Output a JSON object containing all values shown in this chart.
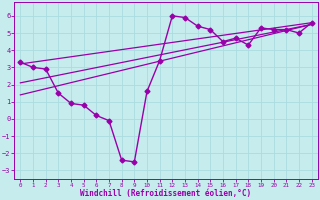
{
  "xlabel": "Windchill (Refroidissement éolien,°C)",
  "xlim": [
    -0.5,
    23.5
  ],
  "ylim": [
    -3.5,
    6.8
  ],
  "xticks": [
    0,
    1,
    2,
    3,
    4,
    5,
    6,
    7,
    8,
    9,
    10,
    11,
    12,
    13,
    14,
    15,
    16,
    17,
    18,
    19,
    20,
    21,
    22,
    23
  ],
  "yticks": [
    -3,
    -2,
    -1,
    0,
    1,
    2,
    3,
    4,
    5,
    6
  ],
  "bg_color": "#c6ecee",
  "grid_color": "#aadce0",
  "line_color": "#9900aa",
  "data_x": [
    0,
    1,
    2,
    3,
    4,
    5,
    6,
    7,
    8,
    9,
    10,
    11,
    12,
    13,
    14,
    15,
    16,
    17,
    18,
    19,
    20,
    21,
    22,
    23
  ],
  "data_y_main": [
    3.3,
    3.0,
    2.9,
    1.5,
    0.9,
    0.8,
    0.2,
    -0.1,
    -2.4,
    -2.5,
    1.6,
    3.4,
    6.0,
    5.9,
    5.4,
    5.2,
    4.5,
    4.7,
    4.3,
    5.3,
    5.2,
    5.2,
    5.0,
    5.6
  ],
  "line1_x": [
    0,
    23
  ],
  "line1_y": [
    3.2,
    5.6
  ],
  "line2_x": [
    0,
    23
  ],
  "line2_y": [
    2.1,
    5.5
  ],
  "line3_x": [
    0,
    23
  ],
  "line3_y": [
    1.4,
    5.5
  ],
  "marker_style": "D",
  "marker_size": 2.5,
  "lw_main": 1.0,
  "lw_reg": 0.9
}
